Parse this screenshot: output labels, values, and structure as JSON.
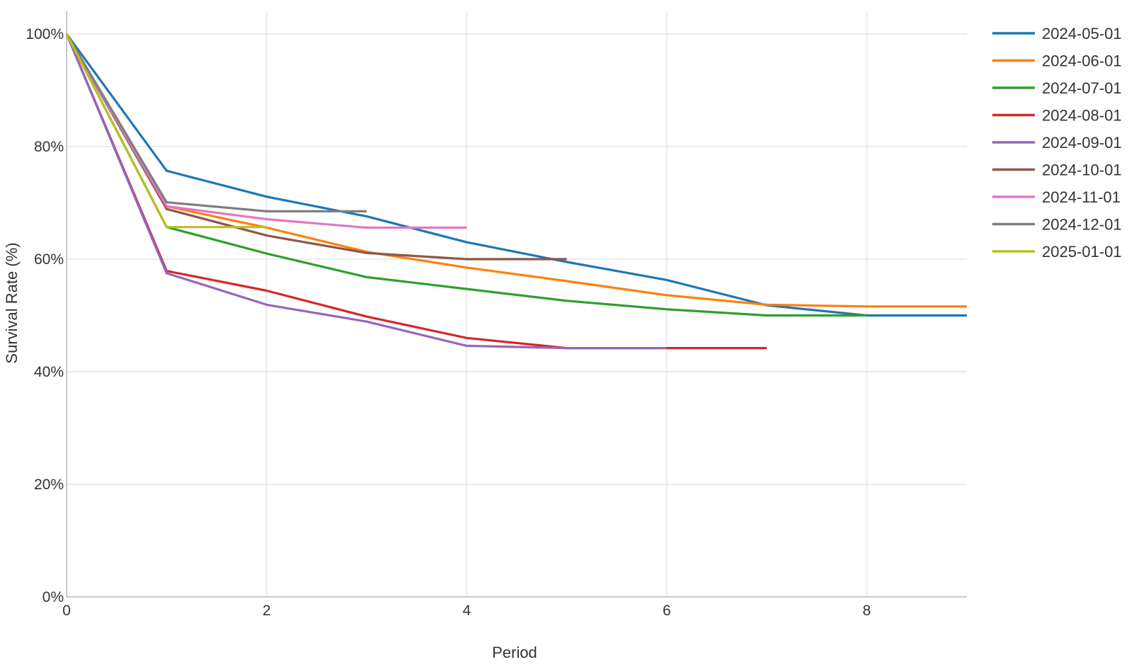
{
  "chart_data": {
    "type": "line",
    "title": "",
    "xlabel": "Period",
    "ylabel": "Survival Rate (%)",
    "xlim": [
      0,
      9
    ],
    "ylim": [
      0,
      100
    ],
    "x_ticks": [
      0,
      2,
      4,
      6,
      8
    ],
    "y_ticks": [
      0,
      20,
      40,
      60,
      80,
      100
    ],
    "y_tick_labels": [
      "0%",
      "20%",
      "40%",
      "60%",
      "80%",
      "100%"
    ],
    "grid": true,
    "legend_position": "right",
    "series": [
      {
        "name": "2024-05-01",
        "color": "#1f77b4",
        "x": [
          0,
          1,
          2,
          3,
          4,
          5,
          6,
          7,
          8,
          9
        ],
        "y": [
          100,
          75.7,
          71.1,
          67.6,
          63.0,
          59.5,
          56.3,
          51.8,
          50.0,
          50.0
        ]
      },
      {
        "name": "2024-06-01",
        "color": "#ff7f0e",
        "x": [
          0,
          1,
          2,
          3,
          4,
          5,
          6,
          7,
          8,
          9
        ],
        "y": [
          100,
          69.4,
          65.6,
          61.3,
          58.5,
          56.1,
          53.6,
          51.9,
          51.6,
          51.6
        ]
      },
      {
        "name": "2024-07-01",
        "color": "#2ca02c",
        "x": [
          0,
          1,
          2,
          3,
          4,
          5,
          6,
          7,
          8
        ],
        "y": [
          100,
          65.7,
          61.0,
          56.8,
          54.7,
          52.6,
          51.1,
          50.0,
          50.0
        ]
      },
      {
        "name": "2024-08-01",
        "color": "#d62728",
        "x": [
          0,
          1,
          2,
          3,
          4,
          5,
          6,
          7
        ],
        "y": [
          100,
          57.9,
          54.4,
          49.8,
          46.0,
          44.2,
          44.2,
          44.2
        ]
      },
      {
        "name": "2024-09-01",
        "color": "#9467bd",
        "x": [
          0,
          1,
          2,
          3,
          4,
          5,
          6
        ],
        "y": [
          100,
          57.5,
          51.9,
          48.9,
          44.6,
          44.2,
          44.2
        ]
      },
      {
        "name": "2024-10-01",
        "color": "#8c564b",
        "x": [
          0,
          1,
          2,
          3,
          4,
          5
        ],
        "y": [
          100,
          68.9,
          64.2,
          61.1,
          60.0,
          60.0
        ]
      },
      {
        "name": "2024-11-01",
        "color": "#e377c2",
        "x": [
          0,
          1,
          2,
          3,
          4
        ],
        "y": [
          100,
          69.4,
          67.1,
          65.6,
          65.6
        ]
      },
      {
        "name": "2024-12-01",
        "color": "#7f7f7f",
        "x": [
          0,
          1,
          2,
          3
        ],
        "y": [
          100,
          70.1,
          68.5,
          68.5
        ]
      },
      {
        "name": "2025-01-01",
        "color": "#bcbd22",
        "x": [
          0,
          1,
          2
        ],
        "y": [
          100,
          65.7,
          65.7
        ]
      }
    ]
  }
}
